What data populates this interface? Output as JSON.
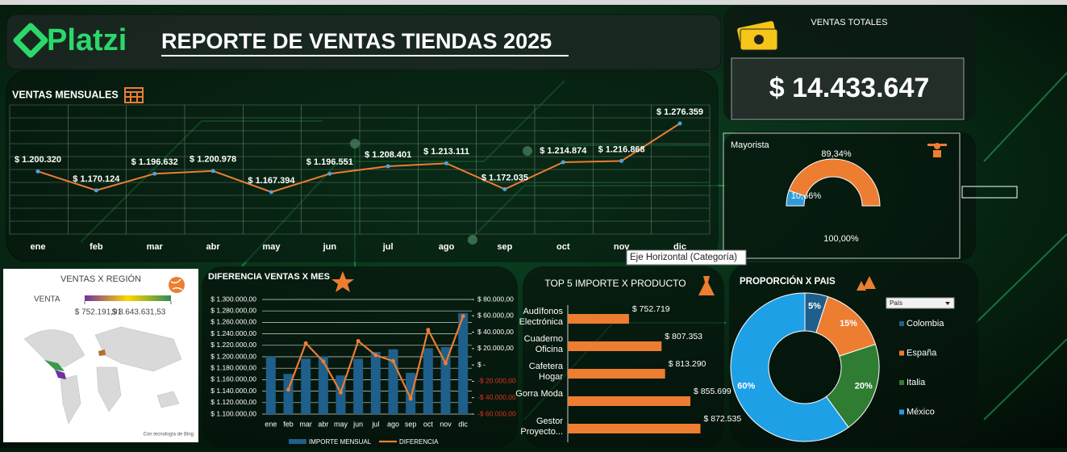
{
  "header": {
    "logo": "Platzi",
    "title": "REPORTE DE VENTAS TIENDAS 2025"
  },
  "kpi": {
    "label": "VENTAS TOTALES",
    "value": "$ 14.433.647"
  },
  "tooltip": "Eje Horizontal (Categoría)",
  "chart_data": [
    {
      "type": "line",
      "title": "VENTAS MENSUALES",
      "categories": [
        "ene",
        "feb",
        "mar",
        "abr",
        "may",
        "jun",
        "jul",
        "ago",
        "sep",
        "oct",
        "nov",
        "dic"
      ],
      "values": [
        1200320,
        1170124,
        1196632,
        1200978,
        1167394,
        1196551,
        1208401,
        1213111,
        1172035,
        1214874,
        1216868,
        1276359
      ],
      "value_labels": [
        "$ 1.200.320",
        "$ 1.170.124",
        "$ 1.196.632",
        "$ 1.200.978",
        "$ 1.167.394",
        "$ 1.196.551",
        "$ 1.208.401",
        "$ 1.213.111",
        "$ 1.172.035",
        "$ 1.214.874",
        "$ 1.216.868",
        "$ 1.276.359"
      ],
      "color": "#ed7d31",
      "grid": true
    },
    {
      "type": "gauge",
      "title": "Mayorista",
      "values": [
        10.66,
        89.34
      ],
      "value_labels": [
        "10,66%",
        "89,34%"
      ],
      "colors": [
        "#2e9bd6",
        "#ed7d31"
      ],
      "total": 100,
      "total_label": "100,00%"
    },
    {
      "type": "map",
      "title": "VENTAS X REGIÓN",
      "legend_title": "VENTA",
      "values": [
        752191.91,
        8643631.53
      ],
      "value_labels": [
        "$ 752.191,91",
        "$ 8.643.631,53"
      ],
      "colors": [
        "#7030a0",
        "#ffd700",
        "#2e8b57"
      ],
      "credit": "Con tecnología de Bing"
    },
    {
      "type": "combo",
      "title": "DIFERENCIA VENTAS X MES",
      "categories": [
        "ene",
        "feb",
        "mar",
        "abr",
        "may",
        "jun",
        "jul",
        "ago",
        "sep",
        "oct",
        "nov",
        "dic"
      ],
      "series": [
        {
          "name": "IMPORTE MENSUAL",
          "type": "bar",
          "color": "#1f5f8b",
          "values": [
            1200320,
            1170124,
            1196632,
            1200978,
            1167394,
            1196551,
            1208401,
            1213111,
            1172035,
            1214874,
            1216868,
            1276359
          ]
        },
        {
          "name": "DIFERENCIA",
          "type": "line",
          "axis": "y2",
          "color": "#ed7d31",
          "values": [
            null,
            -30196,
            26508,
            4346,
            -33584,
            29157,
            11850,
            4710,
            -41076,
            42839,
            1994,
            59491
          ]
        }
      ],
      "ylim": [
        1100000,
        1300000
      ],
      "yticks": [
        {
          "value": 1100000,
          "label": "$ 1.100.000,00"
        },
        {
          "value": 1120000,
          "label": "$ 1.120.000,00"
        },
        {
          "value": 1140000,
          "label": "$ 1.140.000,00"
        },
        {
          "value": 1160000,
          "label": "$ 1.160.000,00"
        },
        {
          "value": 1180000,
          "label": "$ 1.180.000,00"
        },
        {
          "value": 1200000,
          "label": "$ 1.200.000,00"
        },
        {
          "value": 1220000,
          "label": "$ 1.220.000,00"
        },
        {
          "value": 1240000,
          "label": "$ 1.240.000,00"
        },
        {
          "value": 1260000,
          "label": "$ 1.260.000,00"
        },
        {
          "value": 1280000,
          "label": "$ 1.280.000,00"
        },
        {
          "value": 1300000,
          "label": "$ 1.300.000,00"
        }
      ],
      "y2lim": [
        -60000,
        80000
      ],
      "y2ticks": [
        {
          "value": -60000,
          "label": "-$ 60.000,00"
        },
        {
          "value": -40000,
          "label": "-$ 40.000,00"
        },
        {
          "value": -20000,
          "label": "-$ 20.000,00"
        },
        {
          "value": 0,
          "label": "$ -"
        },
        {
          "value": 20000,
          "label": "$ 20.000,00"
        },
        {
          "value": 40000,
          "label": "$ 40.000,00"
        },
        {
          "value": 60000,
          "label": "$ 60.000,00"
        },
        {
          "value": 80000,
          "label": "$ 80.000,00"
        }
      ],
      "grid": true
    },
    {
      "type": "bar",
      "orientation": "horizontal",
      "title": "TOP 5 IMPORTE X PRODUCTO",
      "categories": [
        "Audífonos Electrónica",
        "Cuaderno Oficina",
        "Cafetera Hogar",
        "Gorra Moda",
        "Gestor Proyecto..."
      ],
      "values": [
        752719,
        807353,
        813290,
        855699,
        872535
      ],
      "value_labels": [
        "$ 752.719",
        "$ 807.353",
        "$ 813.290",
        "$ 855.699",
        "$ 872.535"
      ],
      "color": "#ed7d31",
      "xlim": [
        650000,
        880000
      ]
    },
    {
      "type": "donut",
      "title": "PROPORCIÓN X PAIS",
      "filter": "País",
      "categories": [
        "Colombia",
        "España",
        "Italia",
        "México"
      ],
      "values": [
        5,
        15,
        20,
        60
      ],
      "value_labels": [
        "5%",
        "15%",
        "20%",
        "60%"
      ],
      "colors": [
        "#1f5f8b",
        "#ed7d31",
        "#2e7d32",
        "#1ea0e6"
      ]
    }
  ]
}
